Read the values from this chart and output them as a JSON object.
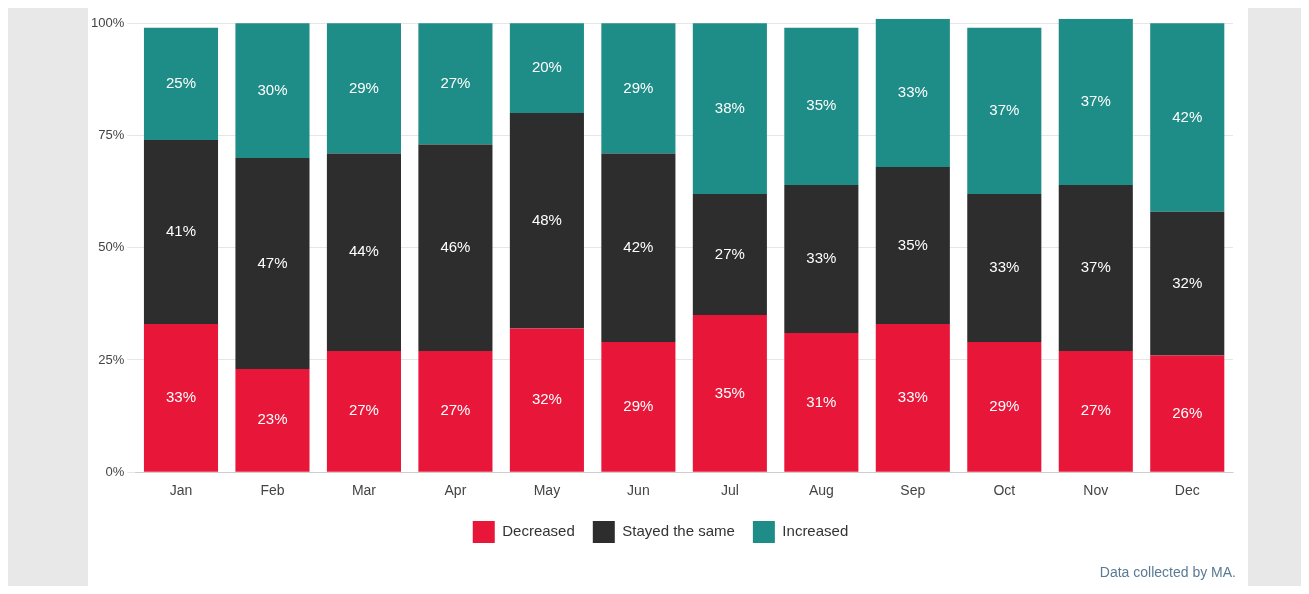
{
  "chart_data": {
    "type": "bar",
    "stacked": true,
    "categories": [
      "Jan",
      "Feb",
      "Mar",
      "Apr",
      "May",
      "Jun",
      "Jul",
      "Aug",
      "Sep",
      "Oct",
      "Nov",
      "Dec"
    ],
    "series": [
      {
        "name": "Decreased",
        "color": "#e8173a",
        "values": [
          33,
          23,
          27,
          27,
          32,
          29,
          35,
          31,
          33,
          29,
          27,
          26
        ],
        "value_labels": [
          "33%",
          "23%",
          "27%",
          "27%",
          "32%",
          "29%",
          "35%",
          "31%",
          "33%",
          "29%",
          "27%",
          "26%"
        ]
      },
      {
        "name": "Stayed the same",
        "color": "#2d2d2d",
        "values": [
          41,
          47,
          44,
          46,
          48,
          42,
          27,
          33,
          35,
          33,
          37,
          32
        ],
        "value_labels": [
          "41%",
          "47%",
          "44%",
          "46%",
          "48%",
          "42%",
          "27%",
          "33%",
          "35%",
          "33%",
          "37%",
          "32%"
        ]
      },
      {
        "name": "Increased",
        "color": "#1e8c87",
        "values": [
          25,
          30,
          29,
          27,
          20,
          29,
          38,
          35,
          33,
          37,
          37,
          42
        ],
        "value_labels": [
          "25%",
          "30%",
          "29%",
          "27%",
          "20%",
          "29%",
          "38%",
          "35%",
          "33%",
          "37%",
          "37%",
          "42%"
        ]
      }
    ],
    "ylim": [
      0,
      101
    ],
    "yticks": [
      {
        "value": 0,
        "label": "0%"
      },
      {
        "value": 25,
        "label": "25%"
      },
      {
        "value": 50,
        "label": "50%"
      },
      {
        "value": 75,
        "label": "75%"
      },
      {
        "value": 100,
        "label": "100%"
      }
    ],
    "grid": "y",
    "legend": "bottom",
    "annotations": [
      "Data collected by MA."
    ]
  }
}
